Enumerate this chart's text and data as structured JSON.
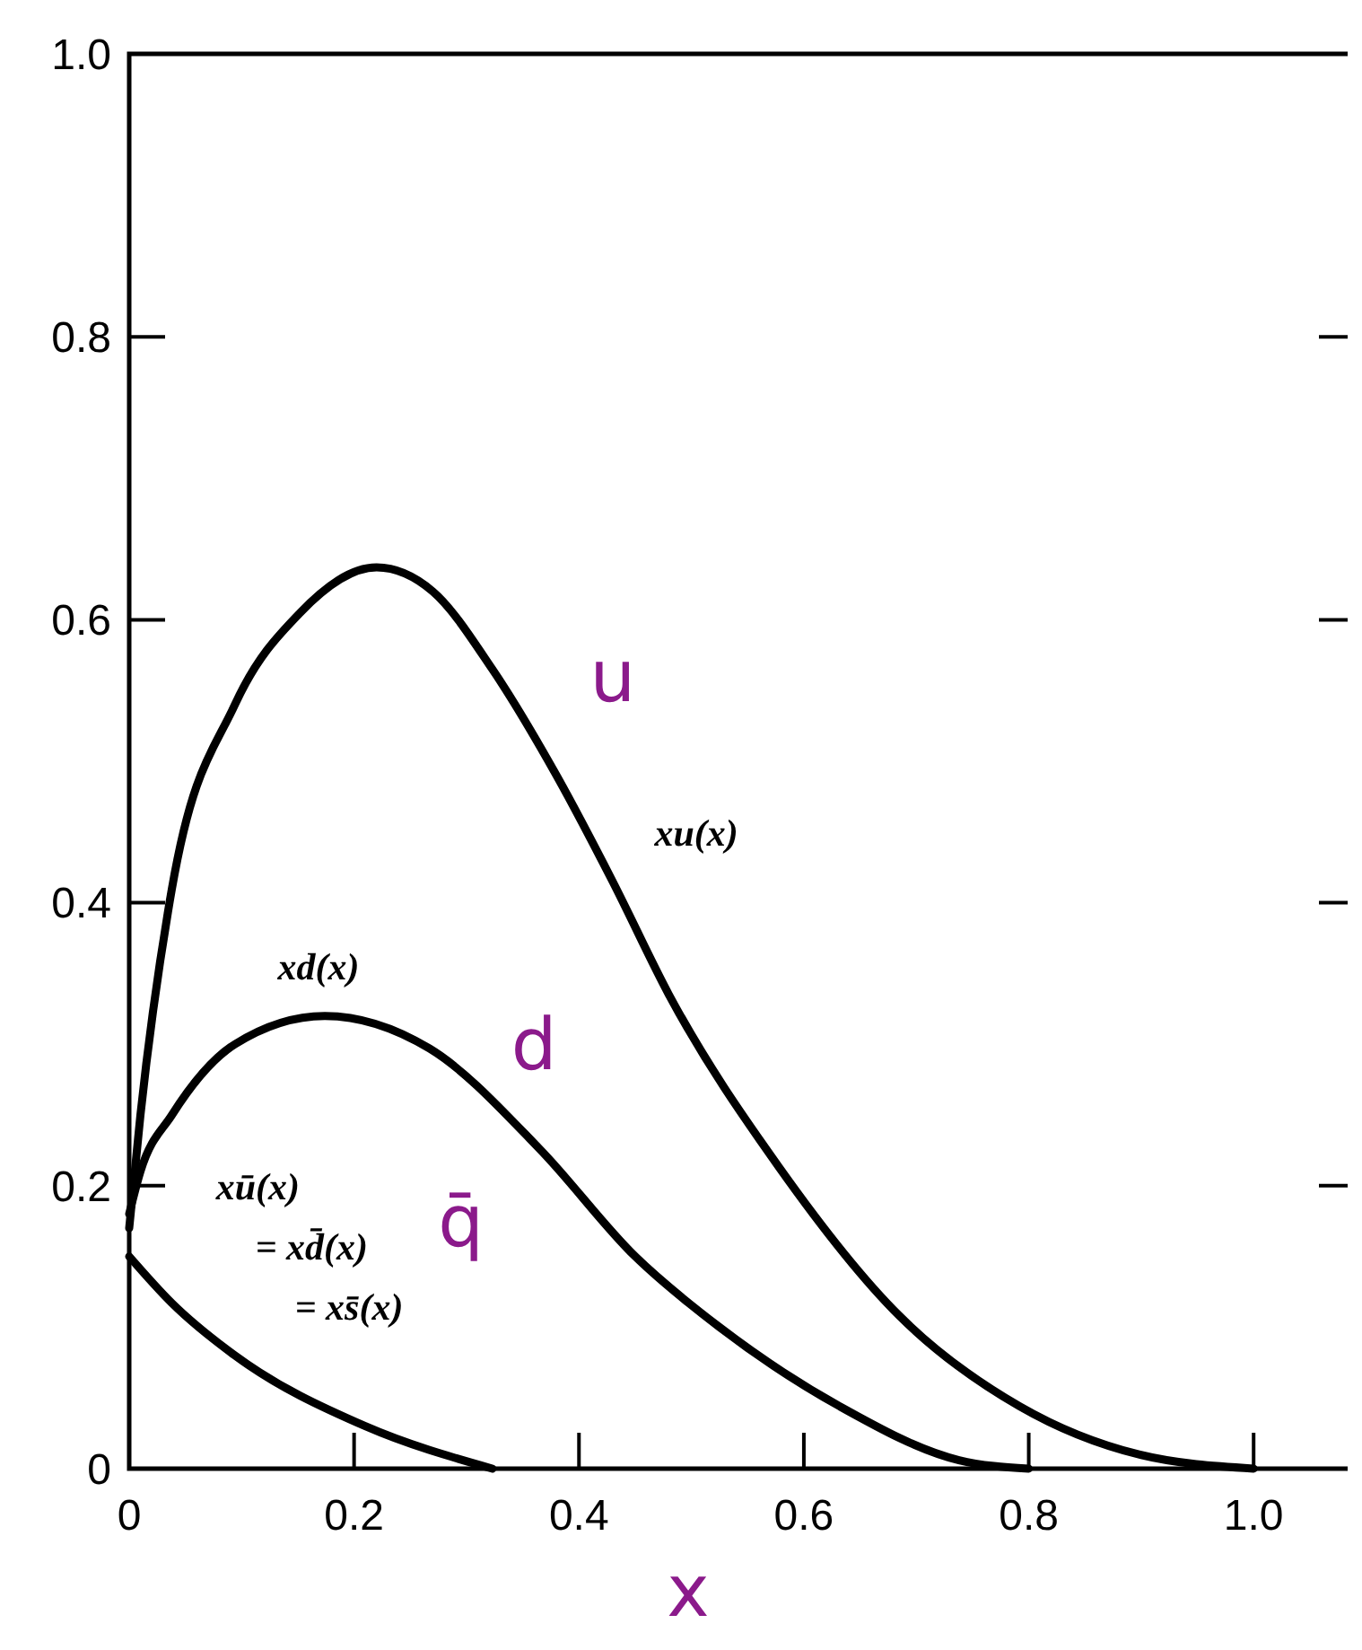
{
  "chart_data": {
    "type": "line",
    "xlabel": "x",
    "xlim": [
      0,
      1.09
    ],
    "ylim": [
      0,
      1
    ],
    "xticks": [
      0,
      {
        "value": 0.2,
        "label": "0.2"
      },
      {
        "value": 0.4,
        "label": "0.4"
      },
      {
        "value": 0.6,
        "label": "0.6"
      },
      {
        "value": 0.8,
        "label": "0.8"
      },
      {
        "value": 1,
        "label": "1.0"
      }
    ],
    "yticks": [
      0,
      {
        "value": 0.2,
        "label": "0.2"
      },
      {
        "value": 0.4,
        "label": "0.4"
      },
      {
        "value": 0.6,
        "label": "0.6"
      },
      {
        "value": 0.8,
        "label": "0.8"
      },
      {
        "value": 1,
        "label": "1.0"
      }
    ],
    "grid": false,
    "marker": "none",
    "line_style": "solid",
    "series": [
      {
        "name": "xu(x)",
        "color": "#000000",
        "x": [
          0,
          0.01,
          0.038,
          0.094,
          0.152,
          0.22,
          0.27,
          0.323,
          0.38,
          0.43,
          0.48,
          0.578,
          0.685,
          0.792,
          0.898,
          1.0
        ],
        "values": [
          0.17,
          0.25,
          0.41,
          0.54,
          0.605,
          0.637,
          0.62,
          0.565,
          0.49,
          0.415,
          0.335,
          0.213,
          0.108,
          0.044,
          0.01,
          0
        ]
      },
      {
        "name": "xd(x)",
        "color": "#000000",
        "x": [
          0,
          0.01,
          0.038,
          0.094,
          0.174,
          0.267,
          0.365,
          0.45,
          0.525,
          0.632,
          0.738,
          0.8
        ],
        "values": [
          0.18,
          0.21,
          0.25,
          0.3,
          0.32,
          0.297,
          0.226,
          0.15,
          0.1,
          0.044,
          0.006,
          0
        ]
      },
      {
        "name": "xū(x) = xd̄(x) = xs̄(x)",
        "color": "#000000",
        "x": [
          0,
          0.038,
          0.094,
          0.21,
          0.323
        ],
        "values": [
          0.15,
          0.117,
          0.08,
          0.03,
          0
        ]
      }
    ],
    "annotations": [
      "u",
      "d",
      "q̄"
    ]
  }
}
